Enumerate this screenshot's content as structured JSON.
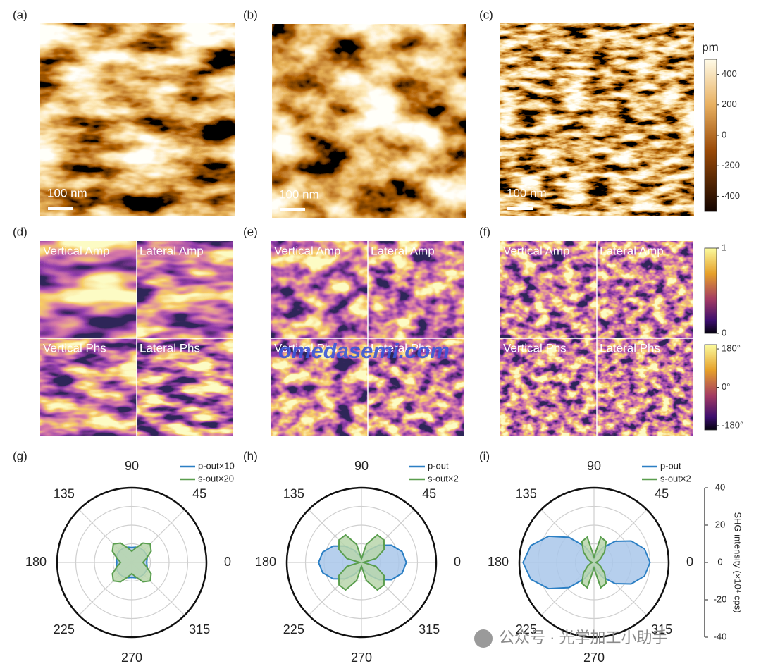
{
  "panel_labels": [
    "(a)",
    "(b)",
    "(c)",
    "(d)",
    "(e)",
    "(f)",
    "(g)",
    "(h)",
    "(i)"
  ],
  "scale_bars": [
    "100 nm",
    "100 nm",
    "100 nm"
  ],
  "height_colorbar": {
    "unit": "pm",
    "lim": [
      -500,
      500
    ],
    "ticks": [
      400,
      200,
      0,
      -200,
      -400
    ]
  },
  "piezo_maps": [
    {
      "labels": [
        "Vertical Amp",
        "Lateral Amp",
        "Vertical Phs",
        "Lateral Phs"
      ]
    },
    {
      "labels": [
        "Vertical Amp",
        "Lateral Amp",
        "Vertical Phs",
        "Lateral Phs"
      ]
    },
    {
      "labels": [
        "Vertical Amp",
        "Lateral Amp",
        "Vertical Phs",
        "Lateral Phs"
      ]
    }
  ],
  "amp_colorbar": {
    "lim": [
      0,
      1
    ],
    "ticks": [
      1,
      0
    ]
  },
  "phase_colorbar": {
    "lim": [
      -200,
      200
    ],
    "ticks": [
      {
        "value": 180,
        "label": "180°"
      },
      {
        "value": 0,
        "label": "0°"
      },
      {
        "value": -180,
        "label": "-180°"
      }
    ]
  },
  "chart_data": [
    {
      "type": "polar",
      "theta": [
        0,
        15,
        30,
        45,
        60,
        75,
        90,
        105,
        120,
        135,
        150,
        165,
        180,
        195,
        210,
        225,
        240,
        255,
        270,
        285,
        300,
        315,
        330,
        345
      ],
      "angle_ticks": [
        0,
        45,
        90,
        135,
        180,
        225,
        270,
        315
      ],
      "rlim": [
        0,
        40
      ],
      "rticks": [
        10,
        20,
        30,
        40
      ],
      "series": [
        {
          "name": "p-out×10",
          "color": "#2b7fc4",
          "fill": "#a9c7ea",
          "values": [
            8,
            8.5,
            8.9,
            9,
            8.9,
            8.5,
            8,
            8.5,
            8.9,
            9,
            8.9,
            8.5,
            8,
            8.5,
            8.9,
            9,
            8.9,
            8.5,
            8,
            8.5,
            8.9,
            9,
            8.9,
            8.5
          ]
        },
        {
          "name": "s-out×20",
          "color": "#5a9e4e",
          "fill": "#b9d6ab",
          "values": [
            6,
            8,
            12,
            14,
            12,
            8,
            6,
            8,
            12,
            14,
            12,
            8,
            6,
            8,
            12,
            14,
            12,
            8,
            6,
            8,
            12,
            14,
            12,
            8
          ]
        }
      ]
    },
    {
      "type": "polar",
      "theta": [
        0,
        15,
        30,
        45,
        60,
        75,
        90,
        105,
        120,
        135,
        150,
        165,
        180,
        195,
        210,
        225,
        240,
        255,
        270,
        285,
        300,
        315,
        330,
        345
      ],
      "angle_ticks": [
        0,
        45,
        90,
        135,
        180,
        225,
        270,
        315
      ],
      "rlim": [
        0,
        40
      ],
      "rticks": [
        10,
        20,
        30,
        40
      ],
      "series": [
        {
          "name": "p-out",
          "color": "#2b7fc4",
          "fill": "#a9c7ea",
          "values": [
            24,
            22.5,
            18.5,
            13,
            7.5,
            3.5,
            2,
            3.5,
            7.5,
            12.5,
            17.5,
            21.5,
            23,
            21.5,
            17.5,
            12.5,
            7.5,
            3.5,
            2,
            3.5,
            7.5,
            13,
            18.5,
            22.5
          ]
        },
        {
          "name": "s-out×2",
          "color": "#5a9e4e",
          "fill": "#b9d6ab",
          "values": [
            1,
            8,
            14,
            17,
            17,
            10,
            2,
            10,
            17,
            17,
            14,
            8,
            1,
            8,
            14,
            17,
            17,
            10,
            2,
            10,
            17,
            17,
            14,
            8
          ]
        }
      ]
    },
    {
      "type": "polar",
      "theta": [
        0,
        15,
        30,
        45,
        60,
        75,
        90,
        105,
        120,
        135,
        150,
        165,
        180,
        195,
        210,
        225,
        240,
        255,
        270,
        285,
        300,
        315,
        330,
        345
      ],
      "angle_ticks": [
        0,
        45,
        90,
        135,
        180,
        225,
        270,
        315
      ],
      "rlim": [
        0,
        40
      ],
      "rticks": [
        10,
        20,
        30,
        40
      ],
      "ylim": [
        -40,
        40
      ],
      "yticks": [
        40,
        20,
        0,
        -20,
        -40
      ],
      "ylabel": "SHG intensity (×10⁴ cps)",
      "series": [
        {
          "name": "p-out",
          "color": "#2b7fc4",
          "fill": "#a9c7ea",
          "values": [
            30,
            28,
            23,
            16,
            9,
            4,
            2,
            4,
            10,
            19,
            28,
            35,
            38,
            35,
            28,
            19,
            10,
            4,
            2,
            4,
            9,
            16,
            23,
            28
          ]
        },
        {
          "name": "s-out×2",
          "color": "#5a9e4e",
          "fill": "#b9d6ab",
          "values": [
            1,
            2,
            4,
            8,
            13,
            14,
            3,
            14,
            13,
            8,
            4,
            2,
            1,
            2,
            4,
            8,
            13,
            14,
            3,
            14,
            13,
            8,
            4,
            2
          ]
        }
      ]
    }
  ],
  "watermarks": {
    "site": "omedasemi.com",
    "wechat": "公众号 · 光学加工小助手"
  }
}
